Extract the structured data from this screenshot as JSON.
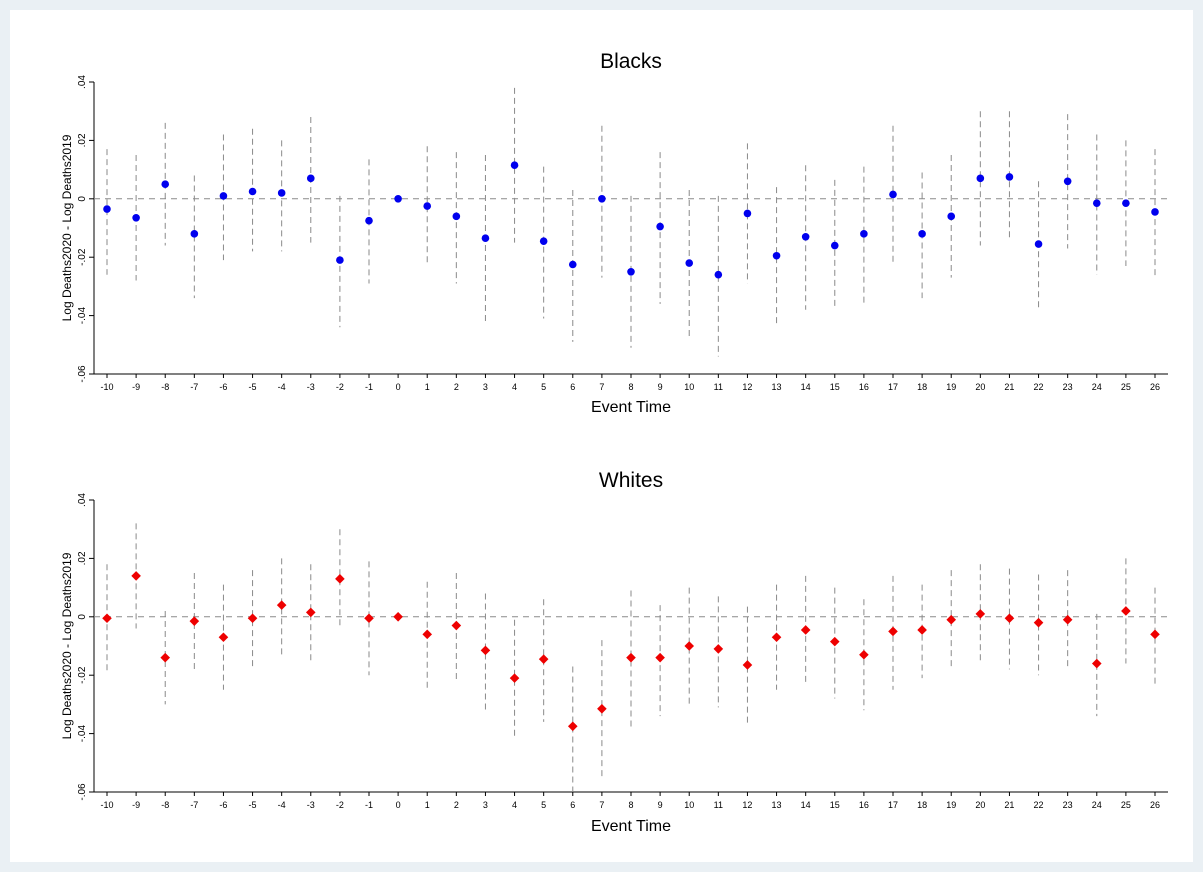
{
  "chart_data": [
    {
      "type": "scatter",
      "title": "Blacks",
      "xlabel": "Event Time",
      "ylabel": "Log Deaths2020 - Log Deaths2019",
      "ylim": [
        -0.06,
        0.04
      ],
      "yticks": [
        -0.06,
        -0.04,
        -0.02,
        0,
        0.02,
        0.04
      ],
      "ytick_labels": [
        "-.06",
        "-.04",
        "-.02",
        "0",
        ".02",
        ".04"
      ],
      "x": [
        -10,
        -9,
        -8,
        -7,
        -6,
        -5,
        -4,
        -3,
        -2,
        -1,
        0,
        1,
        2,
        3,
        4,
        5,
        6,
        7,
        8,
        9,
        10,
        11,
        12,
        13,
        14,
        15,
        16,
        17,
        18,
        19,
        20,
        21,
        22,
        23,
        24,
        25,
        26
      ],
      "x_labels": [
        "-10",
        "-9",
        "-8",
        "-7",
        "-6",
        "-5",
        "-4",
        "-3",
        "-2",
        "-1",
        "0",
        "1",
        "2",
        "3",
        "4",
        "5",
        "6",
        "7",
        "8",
        "9",
        "10",
        "11",
        "12",
        "13",
        "14",
        "15",
        "16",
        "17",
        "18",
        "19",
        "20",
        "21",
        "22",
        "23",
        "24",
        "25",
        "26"
      ],
      "marker": "circle",
      "color": "#0000ee",
      "ci_color": "#8a8a8a",
      "zero_line": true,
      "grid": false,
      "y": [
        -0.0035,
        -0.0065,
        0.005,
        -0.012,
        0.001,
        0.0025,
        0.002,
        0.007,
        -0.021,
        -0.0075,
        0.0,
        -0.0025,
        -0.006,
        -0.0135,
        0.0115,
        -0.0145,
        -0.0225,
        0.0,
        -0.025,
        -0.0095,
        -0.022,
        -0.026,
        -0.005,
        -0.0195,
        -0.013,
        -0.016,
        -0.012,
        0.0015,
        -0.012,
        -0.006,
        0.007,
        0.0075,
        -0.0155,
        0.006,
        -0.0015,
        -0.0015,
        -0.0045
      ],
      "ci_low": [
        -0.026,
        -0.028,
        -0.016,
        -0.034,
        -0.021,
        -0.018,
        -0.018,
        -0.015,
        -0.044,
        -0.029,
        0.0,
        -0.023,
        -0.029,
        -0.042,
        -0.015,
        -0.041,
        -0.049,
        -0.027,
        -0.051,
        -0.036,
        -0.047,
        -0.054,
        -0.029,
        -0.043,
        -0.038,
        -0.038,
        -0.036,
        -0.022,
        -0.034,
        -0.027,
        -0.016,
        -0.014,
        -0.038,
        -0.017,
        -0.026,
        -0.023,
        -0.027
      ],
      "ci_high": [
        0.017,
        0.015,
        0.026,
        0.008,
        0.022,
        0.024,
        0.02,
        0.028,
        0.001,
        0.0135,
        0.0,
        0.018,
        0.016,
        0.015,
        0.038,
        0.011,
        0.003,
        0.025,
        0.001,
        0.016,
        0.003,
        0.001,
        0.019,
        0.004,
        0.0115,
        0.0065,
        0.011,
        0.025,
        0.009,
        0.015,
        0.03,
        0.03,
        0.006,
        0.029,
        0.022,
        0.02,
        0.017
      ]
    },
    {
      "type": "scatter",
      "title": "Whites",
      "xlabel": "Event Time",
      "ylabel": "Log Deaths2020 - Log Deaths2019",
      "ylim": [
        -0.06,
        0.04
      ],
      "yticks": [
        -0.06,
        -0.04,
        -0.02,
        0,
        0.02,
        0.04
      ],
      "ytick_labels": [
        "-.06",
        "-.04",
        "-.02",
        "0",
        ".02",
        ".04"
      ],
      "x": [
        -10,
        -9,
        -8,
        -7,
        -6,
        -5,
        -4,
        -3,
        -2,
        -1,
        0,
        1,
        2,
        3,
        4,
        5,
        6,
        7,
        8,
        9,
        10,
        11,
        12,
        13,
        14,
        15,
        16,
        17,
        18,
        19,
        20,
        21,
        22,
        23,
        24,
        25,
        26
      ],
      "x_labels": [
        "-10",
        "-9",
        "-8",
        "-7",
        "-6",
        "-5",
        "-4",
        "-3",
        "-2",
        "-1",
        "0",
        "1",
        "2",
        "3",
        "4",
        "5",
        "6",
        "7",
        "8",
        "9",
        "10",
        "11",
        "12",
        "13",
        "14",
        "15",
        "16",
        "17",
        "18",
        "19",
        "20",
        "21",
        "22",
        "23",
        "24",
        "25",
        "26"
      ],
      "marker": "diamond",
      "color": "#ee0000",
      "ci_color": "#8a8a8a",
      "zero_line": true,
      "grid": false,
      "y": [
        -0.0005,
        0.014,
        -0.014,
        -0.0015,
        -0.007,
        -0.0005,
        0.004,
        0.0015,
        0.013,
        -0.0005,
        0.0,
        -0.006,
        -0.003,
        -0.0115,
        -0.021,
        -0.0145,
        -0.0375,
        -0.0315,
        -0.014,
        -0.014,
        -0.01,
        -0.011,
        -0.0165,
        -0.007,
        -0.0045,
        -0.0085,
        -0.013,
        -0.005,
        -0.0045,
        -0.001,
        0.001,
        -0.0005,
        -0.002,
        -0.001,
        -0.016,
        0.002,
        -0.006
      ],
      "ci_low": [
        -0.019,
        -0.004,
        -0.03,
        -0.019,
        -0.025,
        -0.018,
        -0.013,
        -0.015,
        -0.004,
        -0.02,
        0.0,
        -0.025,
        -0.022,
        -0.032,
        -0.041,
        -0.036,
        -0.06,
        -0.055,
        -0.038,
        -0.034,
        -0.031,
        -0.031,
        -0.037,
        -0.025,
        -0.023,
        -0.028,
        -0.032,
        -0.025,
        -0.021,
        -0.018,
        -0.016,
        -0.018,
        -0.02,
        -0.018,
        -0.034,
        -0.016,
        -0.023
      ],
      "ci_high": [
        0.018,
        0.032,
        0.002,
        0.015,
        0.011,
        0.016,
        0.02,
        0.018,
        0.03,
        0.019,
        0.0,
        0.012,
        0.015,
        0.008,
        -0.001,
        0.006,
        -0.017,
        -0.008,
        0.009,
        0.004,
        0.01,
        0.007,
        0.0035,
        0.011,
        0.014,
        0.01,
        0.006,
        0.014,
        0.011,
        0.016,
        0.018,
        0.0165,
        0.0145,
        0.016,
        0.001,
        0.02,
        0.01
      ]
    }
  ]
}
